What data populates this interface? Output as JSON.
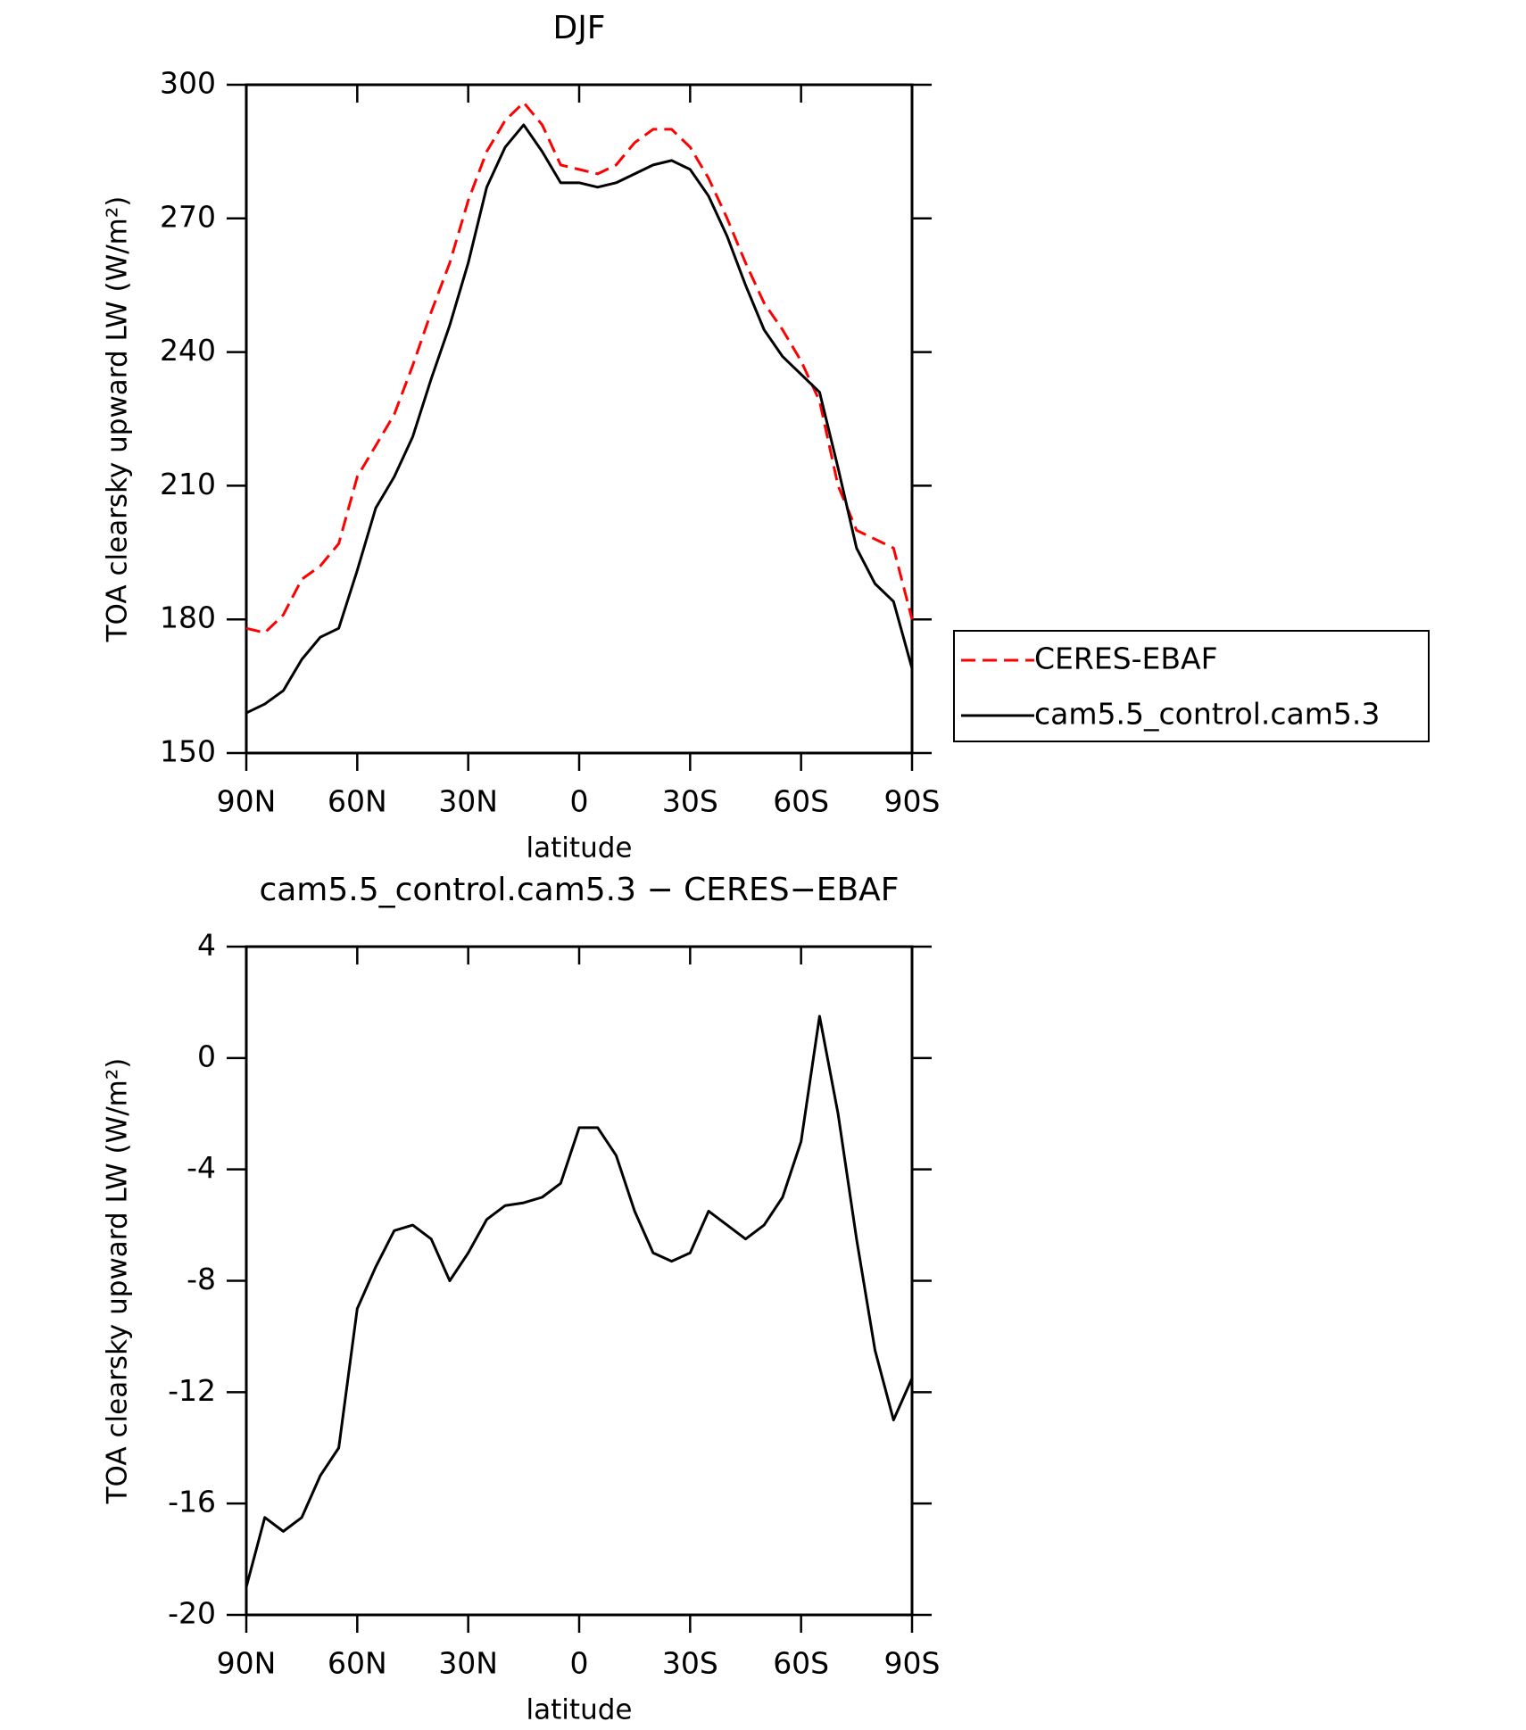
{
  "chart_data": [
    {
      "type": "line",
      "title": "DJF",
      "x_label": "latitude",
      "y_label": "TOA clearsky upward LW (W/m²)",
      "x": [
        90,
        85,
        80,
        75,
        70,
        65,
        60,
        55,
        50,
        45,
        40,
        35,
        30,
        25,
        20,
        15,
        10,
        5,
        0,
        -5,
        -10,
        -15,
        -20,
        -25,
        -30,
        -35,
        -40,
        -45,
        -50,
        -55,
        -60,
        -65,
        -70,
        -75,
        -80,
        -85,
        -90
      ],
      "xlim": [
        90,
        -90
      ],
      "xticks": [
        {
          "value": 90,
          "label": "90N"
        },
        {
          "value": 60,
          "label": "60N"
        },
        {
          "value": 30,
          "label": "30N"
        },
        0,
        {
          "value": -30,
          "label": "30S"
        },
        {
          "value": -60,
          "label": "60S"
        },
        {
          "value": -90,
          "label": "90S"
        }
      ],
      "ylim": [
        150,
        300
      ],
      "yticks": [
        150,
        180,
        210,
        240,
        270,
        300
      ],
      "legend": "right",
      "series": [
        {
          "name": "CERES-EBAF",
          "color": "#ff0000",
          "line_style": "dashed",
          "values": [
            178,
            177,
            181,
            189,
            192,
            197,
            212,
            219,
            226,
            237,
            249,
            260,
            274,
            285,
            292,
            296,
            291,
            282,
            281,
            280,
            282,
            287,
            290,
            290,
            286,
            279,
            270,
            260,
            251,
            245,
            238,
            229,
            210,
            200,
            198,
            196,
            180
          ]
        },
        {
          "name": "cam5.5_control.cam5.3",
          "color": "#000000",
          "line_style": "solid",
          "values": [
            159,
            161,
            164,
            171,
            176,
            178,
            191,
            205,
            212,
            221,
            234,
            246,
            260,
            277,
            286,
            291,
            285,
            278,
            278,
            277,
            278,
            280,
            282,
            283,
            281,
            275,
            266,
            255,
            245,
            239,
            235,
            231,
            214,
            196,
            188,
            184,
            169
          ]
        }
      ]
    },
    {
      "type": "line",
      "title": "cam5.5_control.cam5.3 − CERES−EBAF",
      "x_label": "latitude",
      "y_label": "TOA clearsky upward LW (W/m²)",
      "x": [
        90,
        85,
        80,
        75,
        70,
        65,
        60,
        55,
        50,
        45,
        40,
        35,
        30,
        25,
        20,
        15,
        10,
        5,
        0,
        -5,
        -10,
        -15,
        -20,
        -25,
        -30,
        -35,
        -40,
        -45,
        -50,
        -55,
        -60,
        -65,
        -70,
        -75,
        -80,
        -85,
        -90
      ],
      "xlim": [
        90,
        -90
      ],
      "xticks": [
        {
          "value": 90,
          "label": "90N"
        },
        {
          "value": 60,
          "label": "60N"
        },
        {
          "value": 30,
          "label": "30N"
        },
        0,
        {
          "value": -30,
          "label": "30S"
        },
        {
          "value": -60,
          "label": "60S"
        },
        {
          "value": -90,
          "label": "90S"
        }
      ],
      "ylim": [
        -20,
        4
      ],
      "yticks": [
        -20,
        -16,
        -12,
        -8,
        -4,
        0,
        4
      ],
      "color": "#000000",
      "values": [
        -19,
        -16.5,
        -17,
        -16.5,
        -15,
        -14,
        -9,
        -7.5,
        -6.2,
        -6,
        -6.5,
        -8,
        -7,
        -5.8,
        -5.3,
        -5.2,
        -5,
        -4.5,
        -2.5,
        -2.5,
        -3.5,
        -5.5,
        -7,
        -7.3,
        -7,
        -5.5,
        -6,
        -6.5,
        -6,
        -5,
        -3,
        1.5,
        -2,
        -6.5,
        -10.5,
        -13,
        -11.5
      ]
    }
  ]
}
